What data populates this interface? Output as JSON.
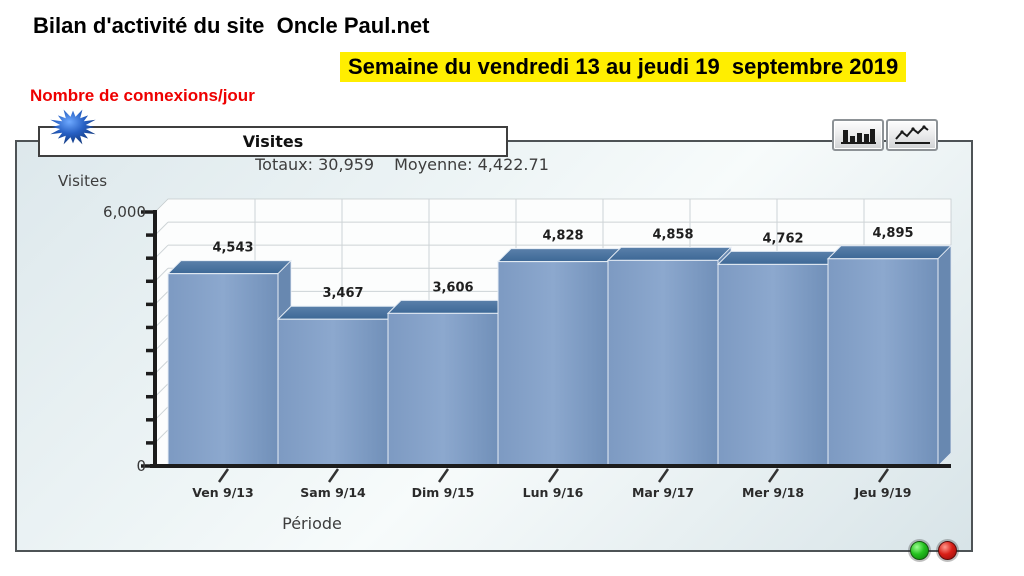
{
  "page": {
    "title": "Bilan d'activité du site  Oncle Paul.net",
    "subtitle_highlight": "Semaine du vendredi 13 au jeudi 19  septembre 2019",
    "metric_label": "Nombre de connexions/jour",
    "colors": {
      "highlight_background": "#ffee00",
      "metric_label_color": "#ee0000"
    }
  },
  "panel": {
    "chart_title": "Visites",
    "stats": {
      "totals_label": "Totaux:",
      "totals_value": "30,959",
      "average_label": "Moyenne:",
      "average_value": "4,422.71"
    },
    "icons": {
      "logo": "starburst-icon",
      "toolbar_bar_view": "bar-chart-icon",
      "toolbar_line_view": "line-chart-icon",
      "status_left": "green-dot",
      "status_right": "red-dot"
    }
  },
  "chart_data": {
    "type": "bar",
    "style": "3d",
    "title": "Visites",
    "categories": [
      "Ven 9/13",
      "Sam 9/14",
      "Dim 9/15",
      "Lun 9/16",
      "Mar 9/17",
      "Mer 9/18",
      "Jeu 9/19"
    ],
    "values": [
      4543,
      3467,
      3606,
      4828,
      4858,
      4762,
      4895
    ],
    "value_labels": [
      "4,543",
      "3,467",
      "3,606",
      "4,828",
      "4,858",
      "4,762",
      "4,895"
    ],
    "xlabel": "Période",
    "ylabel": "Visites",
    "ylim": [
      0,
      6000
    ],
    "ytick_labels": {
      "top": "6,000",
      "bottom": "0"
    },
    "grid": true,
    "grid_divisions_y": 11,
    "grid_divisions_x": 9,
    "legend": "none",
    "totals": "30,959",
    "average": "4,422.71",
    "colors": {
      "bar_front_light": "#8CA8CE",
      "bar_front": "#7D9AC2",
      "bar_front_dark": "#7190B9",
      "bar_top_light": "#5A80AA",
      "bar_top_dark": "#3D6896",
      "bar_side": "#6888B0",
      "edge": "#E6EDF5",
      "axis": "#1C1C1C",
      "grid": "#CDD3D6",
      "plot_background": "#FCFDFD"
    }
  }
}
